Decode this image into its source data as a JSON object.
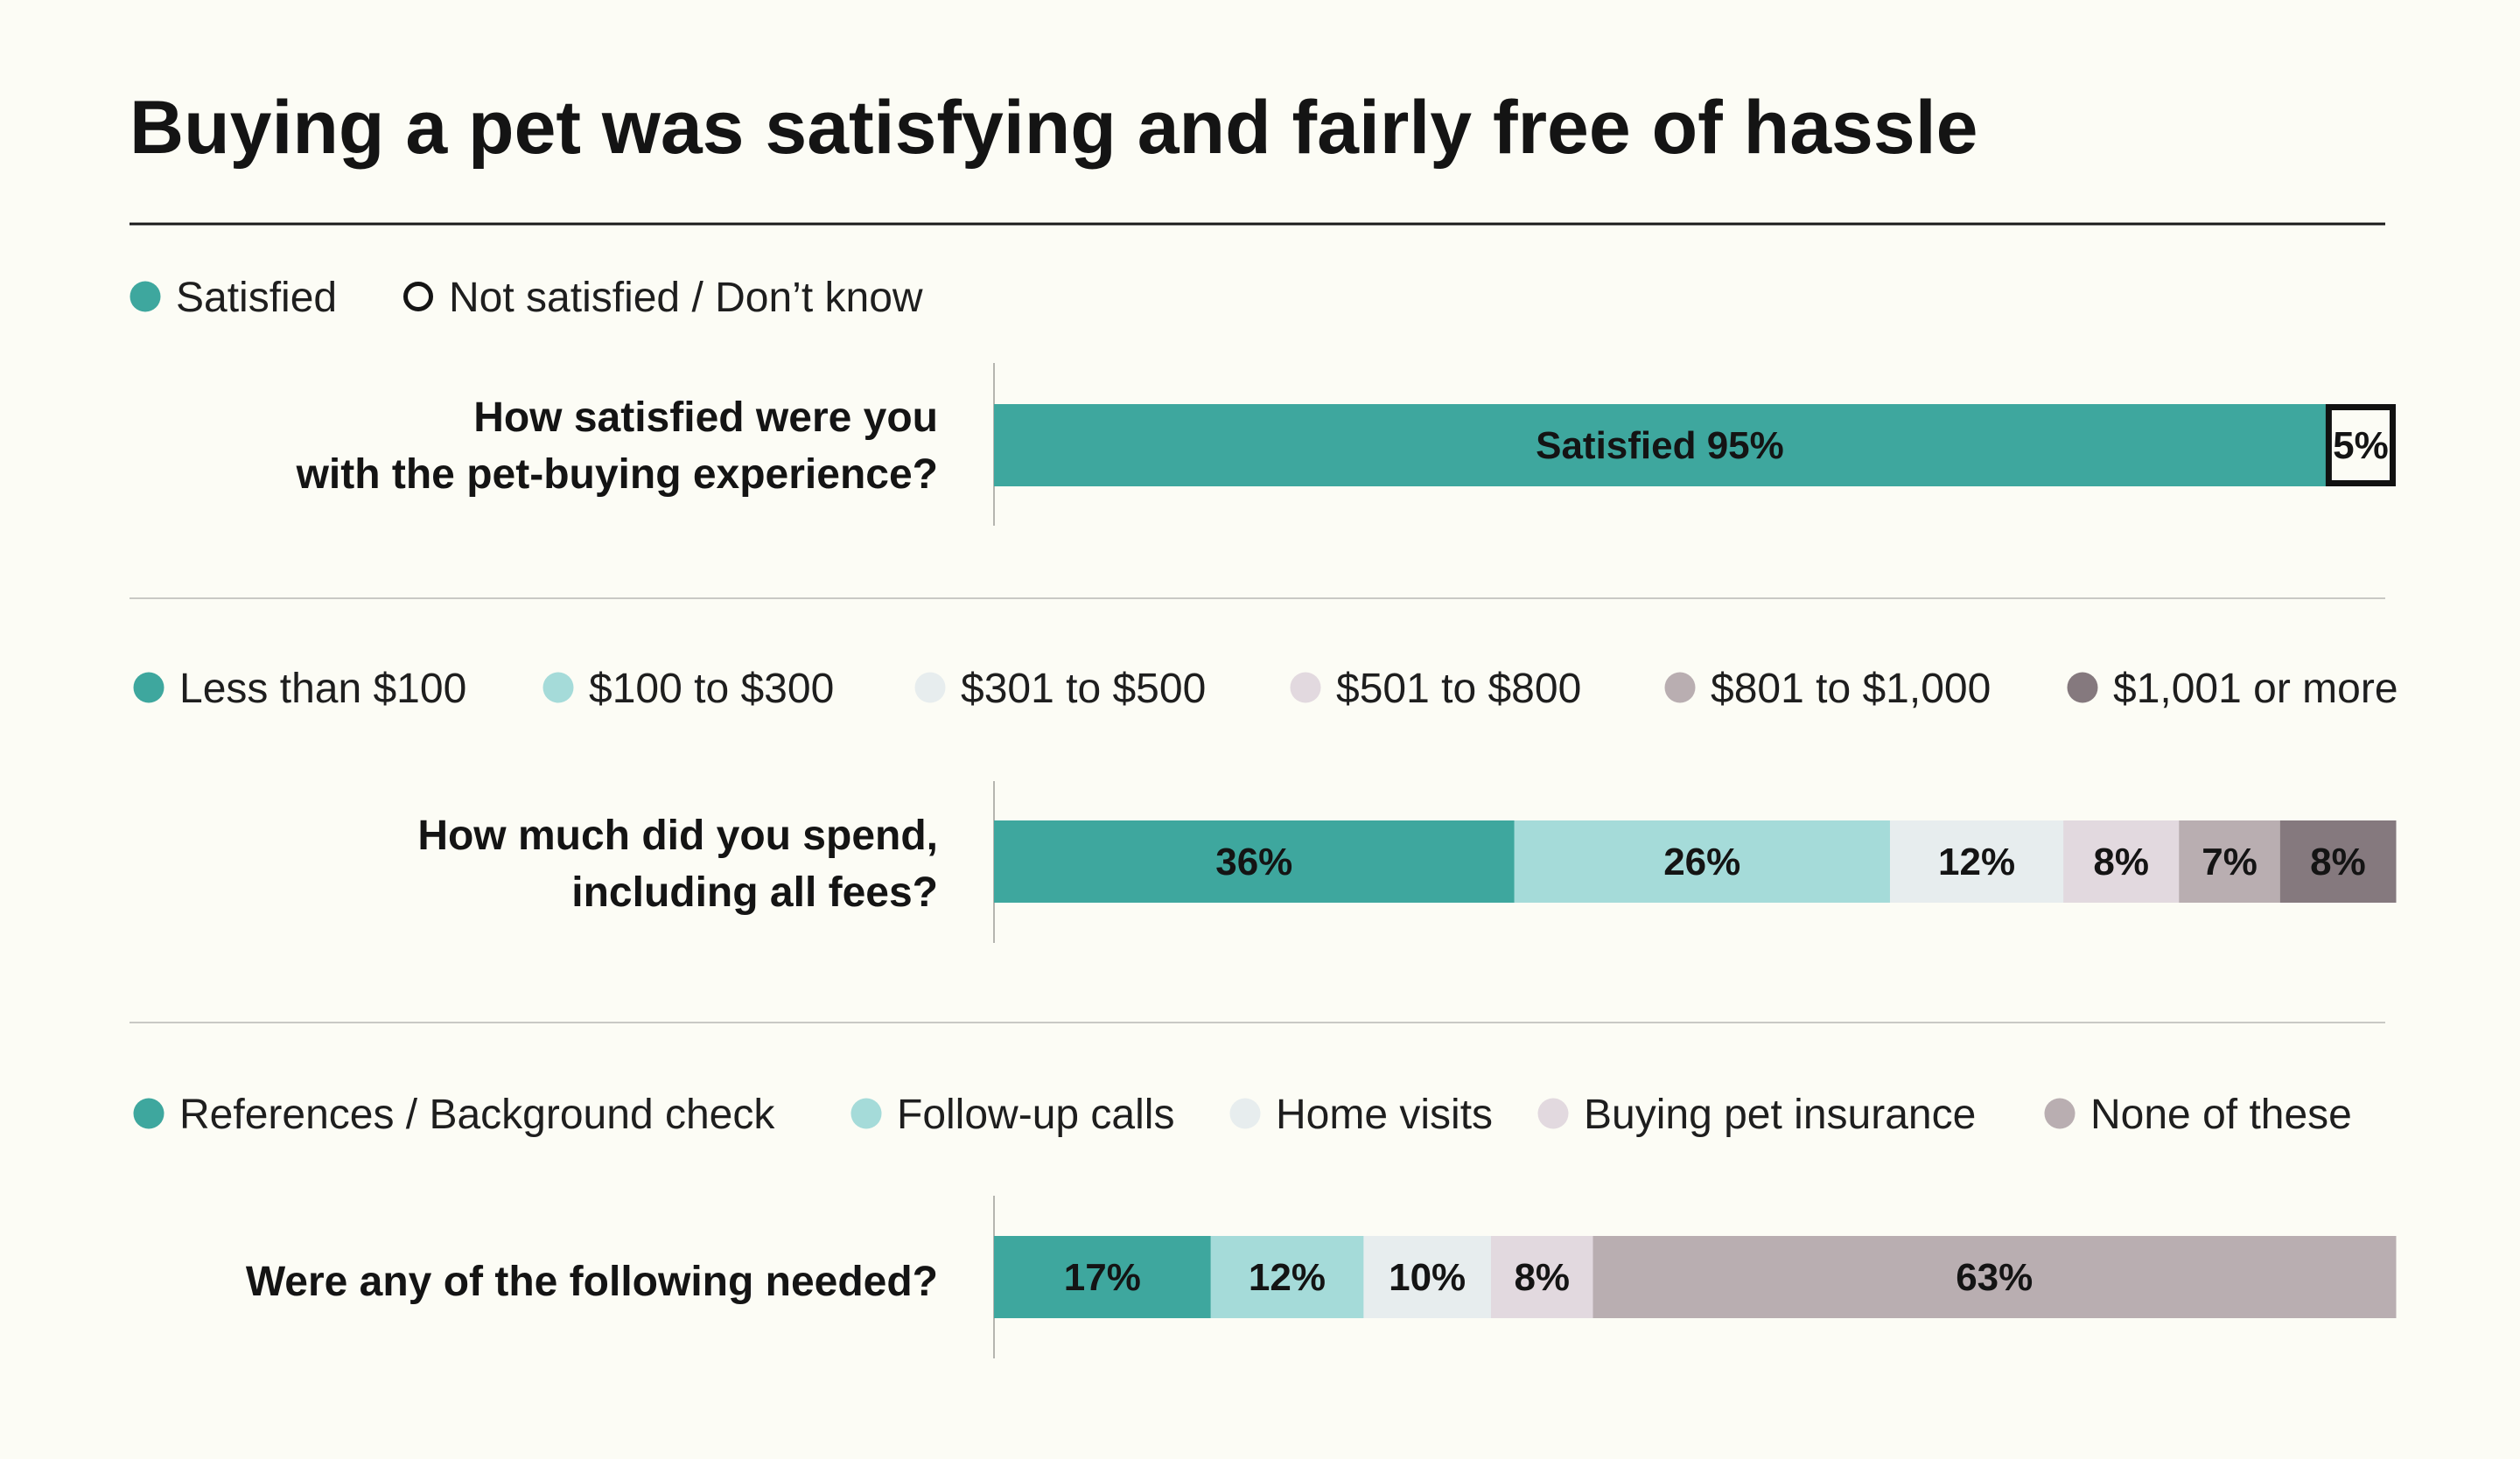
{
  "title": "Buying a pet was satisfying and fairly free of hassle",
  "colors": {
    "teal": "#3ea79e",
    "light_teal": "#a5dbd9",
    "pale": "#e7edee",
    "lavender": "#e2d9df",
    "gray": "#b9aeb1",
    "dark": "#85797e",
    "background": "#fcfcf5"
  },
  "chart_data": [
    {
      "type": "bar",
      "orientation": "horizontal-stacked",
      "question": [
        "How satisfied were you",
        "with the pet-buying experience?"
      ],
      "legend": [
        {
          "label": "Satisfied",
          "color": "#3ea79e",
          "marker": "filled-circle"
        },
        {
          "label": "Not satisfied / Don’t know",
          "color": "#fcfcf5",
          "marker": "open-circle"
        }
      ],
      "segments": [
        {
          "label": "Satisfied",
          "value": 95,
          "text": "Satisfied 95%",
          "color": "#3ea79e"
        },
        {
          "label": "Not satisfied / Don’t know",
          "value": 5,
          "text": "5%",
          "color": "#fcfcf5",
          "outlined": true
        }
      ],
      "scale_max": 100
    },
    {
      "type": "bar",
      "orientation": "horizontal-stacked",
      "question": [
        "How much did you spend,",
        "including all fees?"
      ],
      "legend": [
        {
          "label": "Less than $100",
          "color": "#3ea79e"
        },
        {
          "label": "$100 to $300",
          "color": "#a5dbd9"
        },
        {
          "label": "$301 to $500",
          "color": "#e7edee"
        },
        {
          "label": "$501 to $800",
          "color": "#e2d9df"
        },
        {
          "label": "$801 to $1,000",
          "color": "#b9aeb1"
        },
        {
          "label": "$1,001 or more",
          "color": "#85797e"
        }
      ],
      "segments": [
        {
          "label": "Less than $100",
          "value": 36,
          "text": "36%",
          "color": "#3ea79e"
        },
        {
          "label": "$100 to $300",
          "value": 26,
          "text": "26%",
          "color": "#a5dbd9"
        },
        {
          "label": "$301 to $500",
          "value": 12,
          "text": "12%",
          "color": "#e7edee"
        },
        {
          "label": "$501 to $800",
          "value": 8,
          "text": "8%",
          "color": "#e2d9df"
        },
        {
          "label": "$801 to $1,000",
          "value": 7,
          "text": "7%",
          "color": "#b9aeb1"
        },
        {
          "label": "$1,001 or more",
          "value": 8,
          "text": "8%",
          "color": "#85797e"
        }
      ],
      "scale_max": 97
    },
    {
      "type": "bar",
      "orientation": "horizontal-stacked",
      "question": [
        "Were any of the following needed?"
      ],
      "legend": [
        {
          "label": "References / Background check",
          "color": "#3ea79e"
        },
        {
          "label": "Follow-up calls",
          "color": "#a5dbd9"
        },
        {
          "label": "Home visits",
          "color": "#e7edee"
        },
        {
          "label": "Buying pet insurance",
          "color": "#e2d9df"
        },
        {
          "label": "None of these",
          "color": "#b9aeb1"
        }
      ],
      "segments": [
        {
          "label": "References / Background check",
          "value": 17,
          "text": "17%",
          "color": "#3ea79e"
        },
        {
          "label": "Follow-up calls",
          "value": 12,
          "text": "12%",
          "color": "#a5dbd9"
        },
        {
          "label": "Home visits",
          "value": 10,
          "text": "10%",
          "color": "#e7edee"
        },
        {
          "label": "Buying pet insurance",
          "value": 8,
          "text": "8%",
          "color": "#e2d9df"
        },
        {
          "label": "None of these",
          "value": 63,
          "text": "63%",
          "color": "#b9aeb1"
        }
      ],
      "scale_max": 110
    }
  ]
}
